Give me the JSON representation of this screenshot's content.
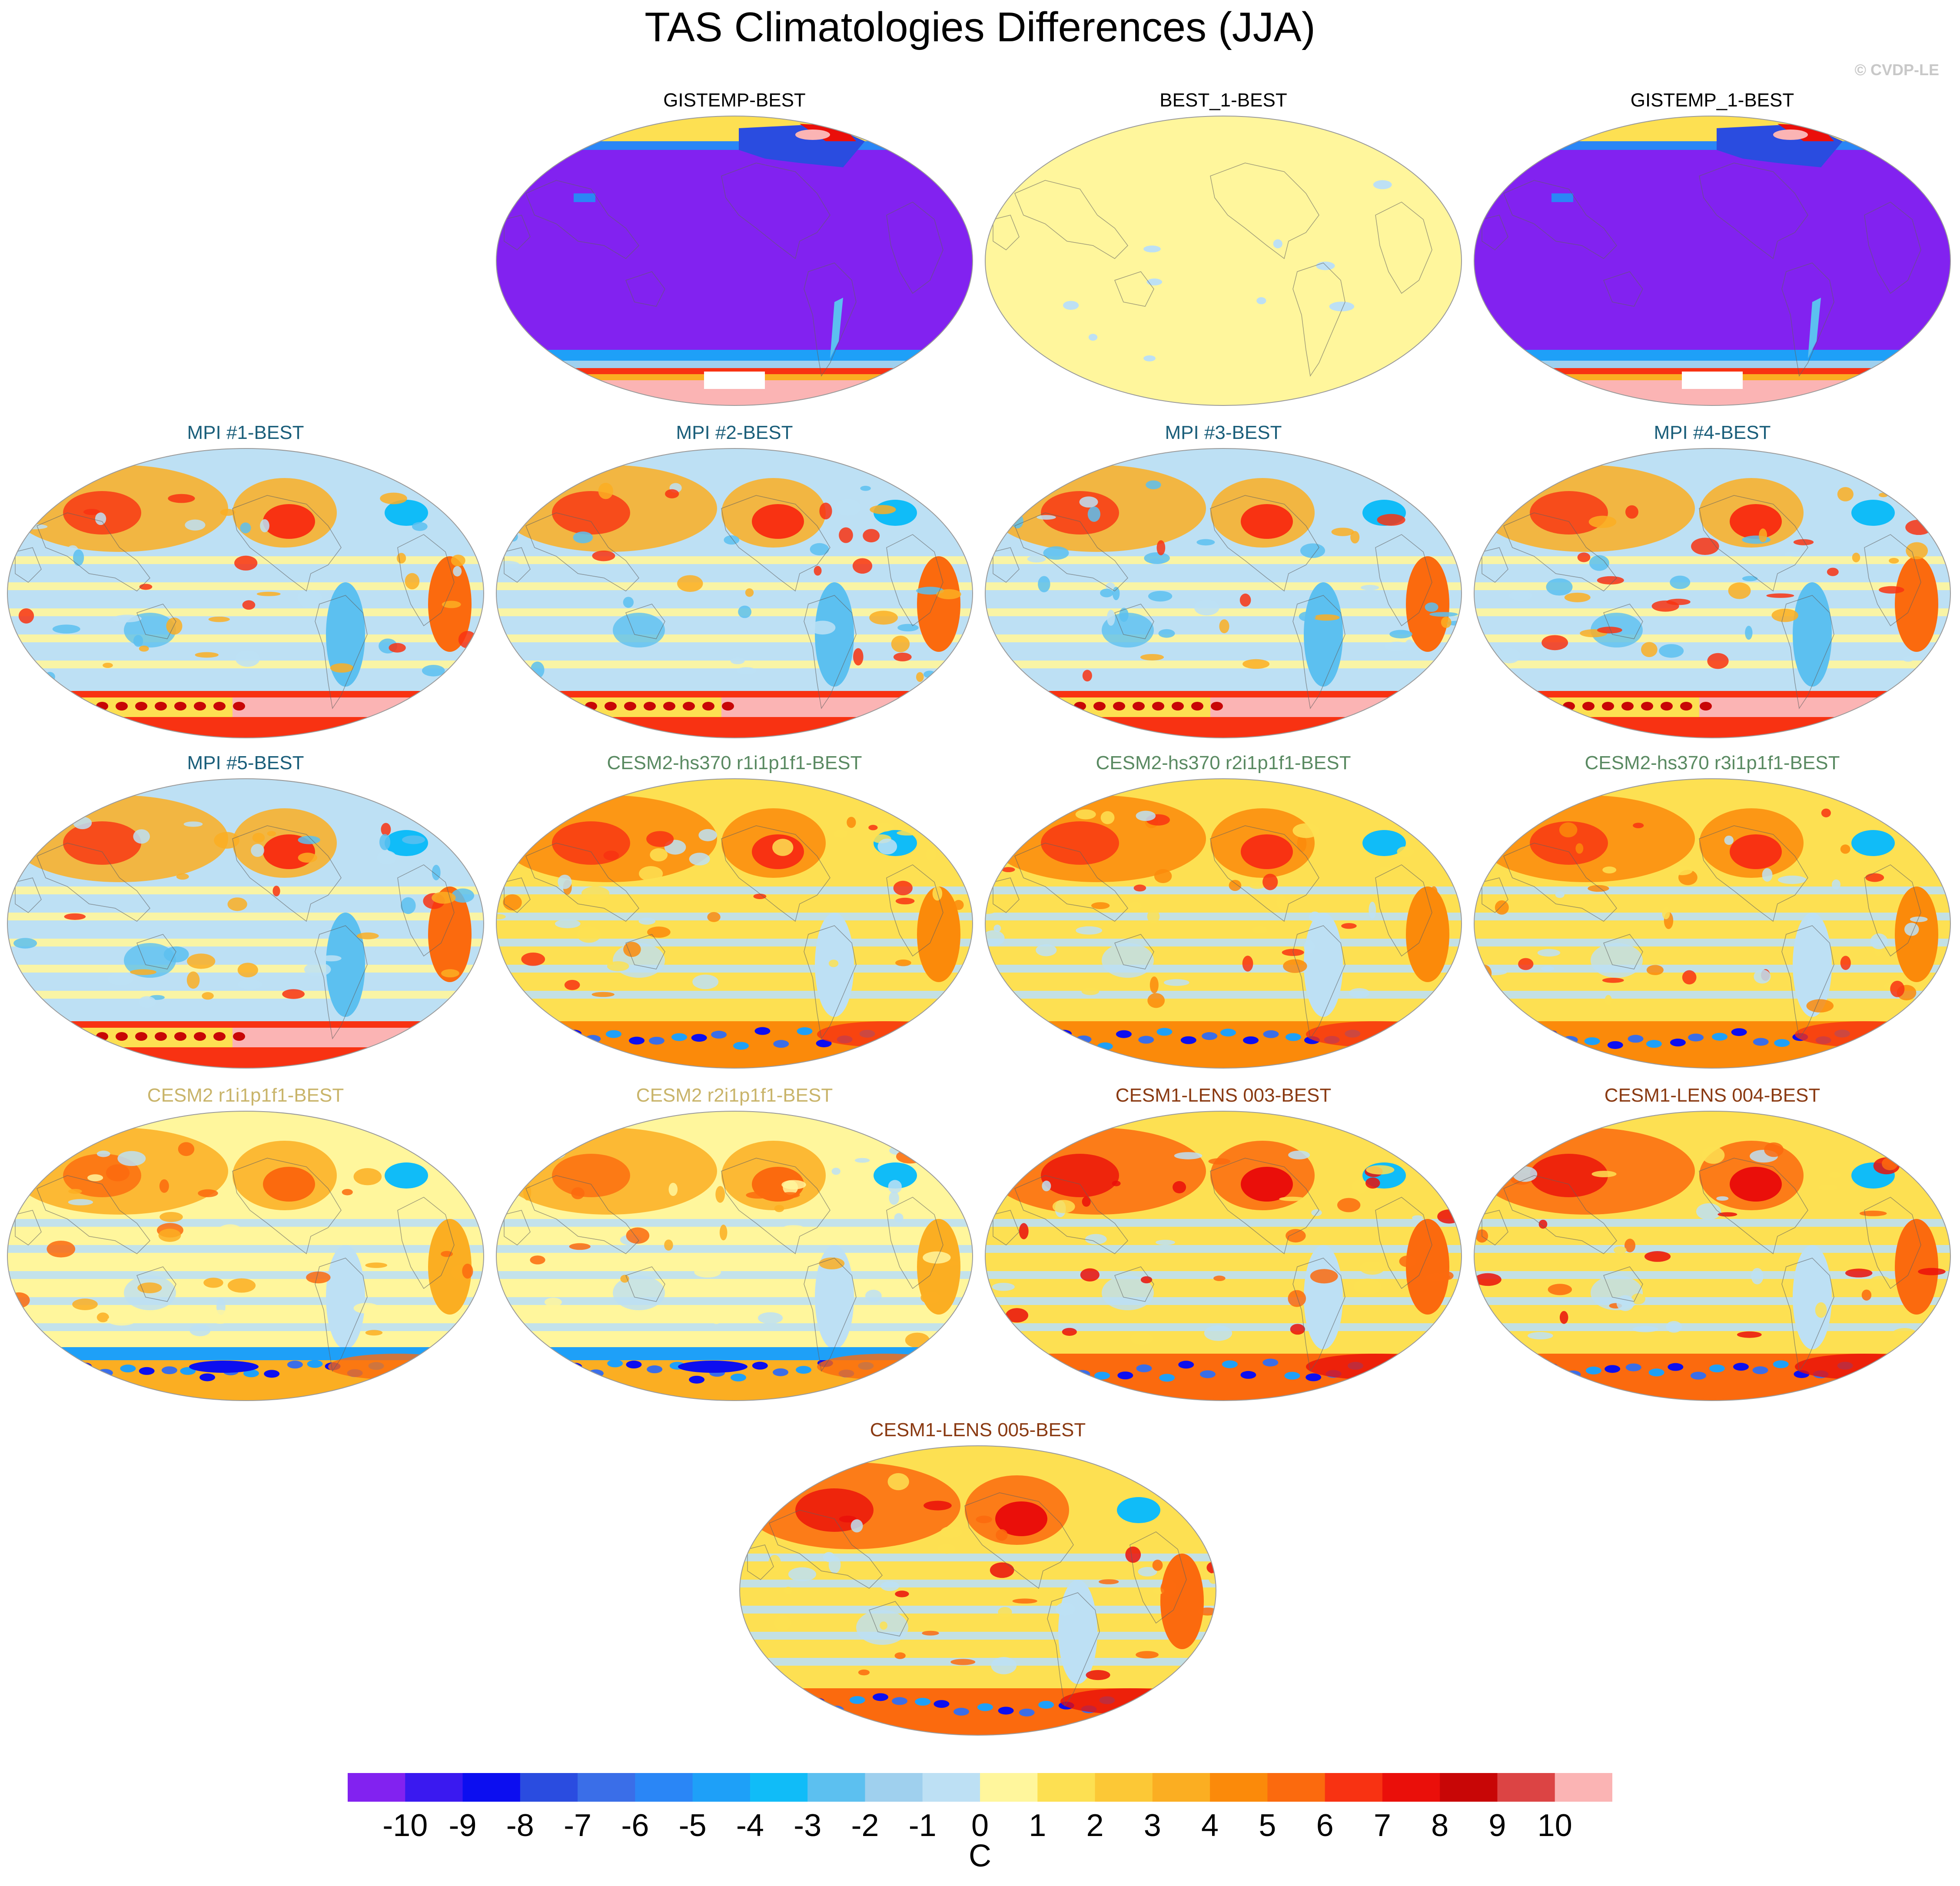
{
  "title": "TAS Climatologies Differences (JJA)",
  "copyright": "© CVDP-LE",
  "colors": {
    "ocean_land_outline": "#606060",
    "map_border": "#9a9a9a"
  },
  "panels": [
    {
      "label": "GISTEMP-BEST",
      "label_color": "#000000",
      "style": "gistemp"
    },
    {
      "label": "BEST_1-BEST",
      "label_color": "#000000",
      "style": "flat"
    },
    {
      "label": "GISTEMP_1-BEST",
      "label_color": "#000000",
      "style": "gistemp"
    },
    {
      "label": "MPI #1-BEST",
      "label_color": "#1a5e7a",
      "style": "mpi"
    },
    {
      "label": "MPI #2-BEST",
      "label_color": "#1a5e7a",
      "style": "mpi"
    },
    {
      "label": "MPI #3-BEST",
      "label_color": "#1a5e7a",
      "style": "mpi"
    },
    {
      "label": "MPI #4-BEST",
      "label_color": "#1a5e7a",
      "style": "mpi"
    },
    {
      "label": "MPI #5-BEST",
      "label_color": "#1a5e7a",
      "style": "mpi"
    },
    {
      "label": "CESM2-hs370 r1i1p1f1-BEST",
      "label_color": "#5a8a62",
      "style": "hs370"
    },
    {
      "label": "CESM2-hs370 r2i1p1f1-BEST",
      "label_color": "#5a8a62",
      "style": "hs370"
    },
    {
      "label": "CESM2-hs370 r3i1p1f1-BEST",
      "label_color": "#5a8a62",
      "style": "hs370"
    },
    {
      "label": "CESM2 r1i1p1f1-BEST",
      "label_color": "#c9b46a",
      "style": "cesm2"
    },
    {
      "label": "CESM2 r2i1p1f1-BEST",
      "label_color": "#c9b46a",
      "style": "cesm2"
    },
    {
      "label": "CESM1-LENS 003-BEST",
      "label_color": "#8a3a12",
      "style": "lens"
    },
    {
      "label": "CESM1-LENS 004-BEST",
      "label_color": "#8a3a12",
      "style": "lens"
    },
    {
      "label": "CESM1-LENS 005-BEST",
      "label_color": "#8a3a12",
      "style": "lens"
    }
  ],
  "colorbar": {
    "colors": [
      "#8222f0",
      "#3a19f0",
      "#0c0ef0",
      "#2a4ce0",
      "#3a6ee8",
      "#2a86f6",
      "#1ea0f8",
      "#10bcf8",
      "#5cc0f0",
      "#9fd0ee",
      "#bde0f4",
      "#fff69c",
      "#fde052",
      "#fcc836",
      "#fbae22",
      "#fb8a0a",
      "#fb6a0e",
      "#f83212",
      "#ea0f0a",
      "#c80606",
      "#dc4444",
      "#fbb4b4"
    ],
    "labels": [
      "-10",
      "-9",
      "-8",
      "-7",
      "-6",
      "-5",
      "-4",
      "-3",
      "-2",
      "-1",
      "0",
      "1",
      "2",
      "3",
      "4",
      "5",
      "6",
      "7",
      "8",
      "9",
      "10"
    ],
    "units": "C"
  }
}
